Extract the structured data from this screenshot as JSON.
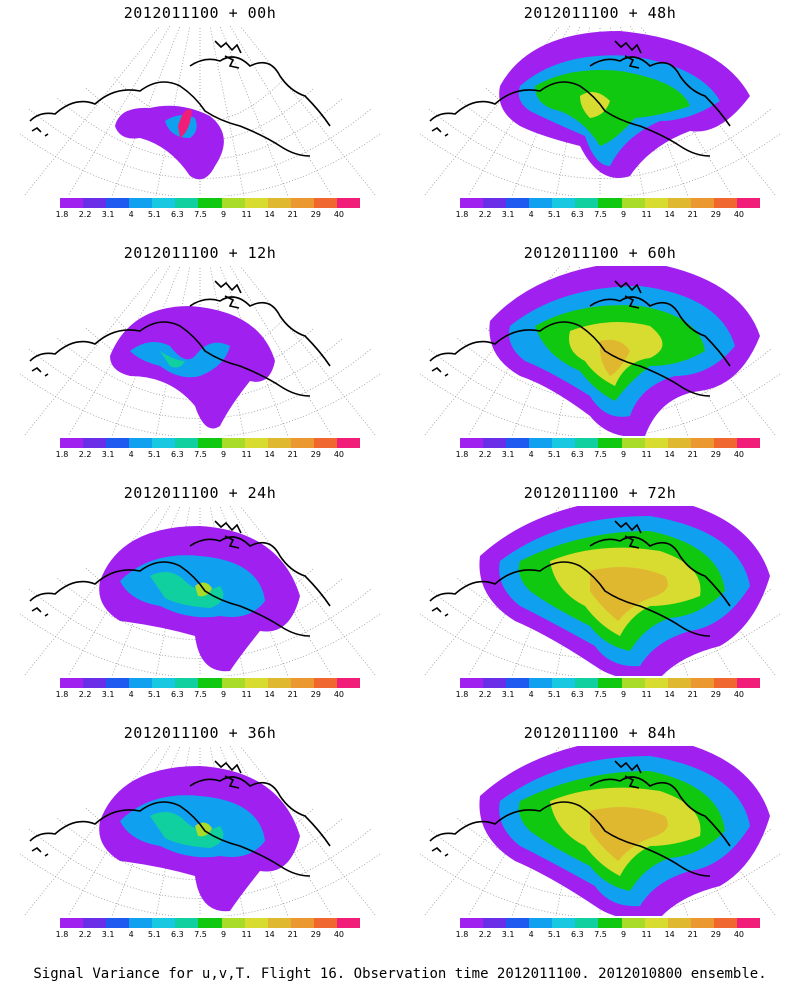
{
  "panels": [
    {
      "title": "2012011100 + 00h",
      "level": 0
    },
    {
      "title": "2012011100 + 48h",
      "level": 3
    },
    {
      "title": "2012011100 + 12h",
      "level": 1
    },
    {
      "title": "2012011100 + 60h",
      "level": 4
    },
    {
      "title": "2012011100 + 24h",
      "level": 2
    },
    {
      "title": "2012011100 + 72h",
      "level": 5
    },
    {
      "title": "2012011100 + 36h",
      "level": 2
    },
    {
      "title": "2012011100 + 84h",
      "level": 5
    }
  ],
  "colorbar": {
    "colors": [
      "#a020f0",
      "#6a2ee8",
      "#1e5af0",
      "#10a0f0",
      "#18c8e0",
      "#10d0a0",
      "#10c810",
      "#a8dc28",
      "#d8dc30",
      "#e0b830",
      "#ec9830",
      "#f06830",
      "#f01e78"
    ],
    "labels": [
      "1.8",
      "2.2",
      "3.1",
      "4",
      "5.1",
      "6.3",
      "7.5",
      "9",
      "11",
      "14",
      "21",
      "29",
      "40"
    ]
  },
  "footer": "Signal Variance for u,v,T. Flight 16. Observation time 2012011100. 2012010800 ensemble."
}
